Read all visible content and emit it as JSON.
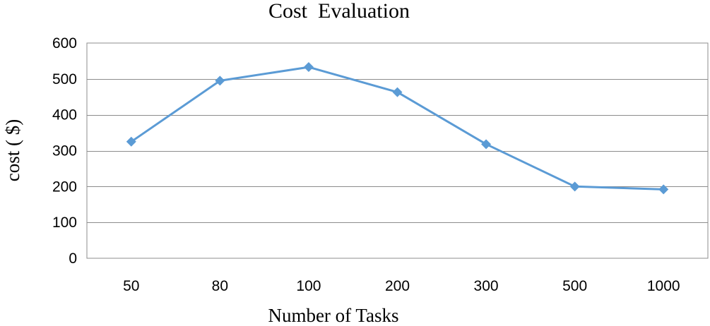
{
  "chart_data": {
    "type": "line",
    "title": "Cost  Evaluation",
    "xlabel": "Number of Tasks",
    "ylabel": "cost ( $)",
    "categories": [
      "50",
      "80",
      "100",
      "200",
      "300",
      "500",
      "1000"
    ],
    "series": [
      {
        "values": [
          325,
          495,
          533,
          463,
          318,
          200,
          192
        ],
        "color": "#5b9bd5",
        "marker": "diamond"
      }
    ],
    "ylim": [
      0,
      600
    ],
    "yticks": [
      0,
      100,
      200,
      300,
      400,
      500,
      600
    ],
    "grid": "horizontal",
    "legend": "none"
  }
}
